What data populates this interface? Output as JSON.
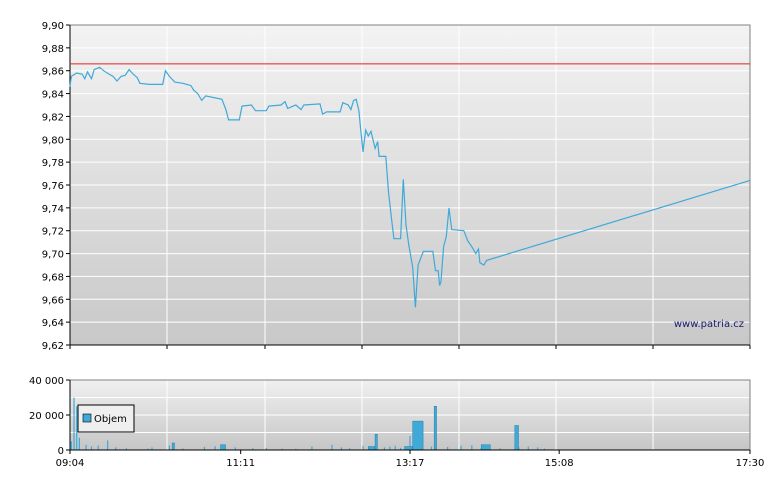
{
  "chart_data": [
    {
      "type": "line",
      "name": "price",
      "y_ticks": [
        "9,90",
        "9,88",
        "9,86",
        "9,84",
        "9,82",
        "9,80",
        "9,78",
        "9,76",
        "9,74",
        "9,72",
        "9,70",
        "9,68",
        "9,66",
        "9,64",
        "9,62"
      ],
      "ylim": [
        9.62,
        9.9
      ],
      "xlim_minutes": [
        544,
        1050
      ],
      "reference_line": {
        "value": 9.866,
        "color": "#e02020"
      },
      "series_color": "#3fa9d8",
      "watermark": "www.patria.cz",
      "points": [
        [
          544,
          9.846
        ],
        [
          545,
          9.855
        ],
        [
          549,
          9.858
        ],
        [
          553,
          9.857
        ],
        [
          555,
          9.853
        ],
        [
          557,
          9.859
        ],
        [
          560,
          9.853
        ],
        [
          562,
          9.861
        ],
        [
          566,
          9.863
        ],
        [
          569,
          9.86
        ],
        [
          573,
          9.857
        ],
        [
          576,
          9.855
        ],
        [
          579,
          9.851
        ],
        [
          582,
          9.855
        ],
        [
          585,
          9.856
        ],
        [
          588,
          9.861
        ],
        [
          591,
          9.857
        ],
        [
          594,
          9.854
        ],
        [
          596,
          9.849
        ],
        [
          603,
          9.848
        ],
        [
          613,
          9.848
        ],
        [
          615,
          9.86
        ],
        [
          618,
          9.855
        ],
        [
          622,
          9.85
        ],
        [
          628,
          9.849
        ],
        [
          634,
          9.847
        ],
        [
          636,
          9.843
        ],
        [
          639,
          9.84
        ],
        [
          642,
          9.834
        ],
        [
          645,
          9.838
        ],
        [
          657,
          9.835
        ],
        [
          660,
          9.826
        ],
        [
          662,
          9.817
        ],
        [
          670,
          9.817
        ],
        [
          672,
          9.829
        ],
        [
          679,
          9.83
        ],
        [
          682,
          9.825
        ],
        [
          690,
          9.825
        ],
        [
          692,
          9.829
        ],
        [
          701,
          9.83
        ],
        [
          704,
          9.833
        ],
        [
          706,
          9.827
        ],
        [
          712,
          9.83
        ],
        [
          716,
          9.826
        ],
        [
          718,
          9.83
        ],
        [
          730,
          9.831
        ],
        [
          732,
          9.822
        ],
        [
          735,
          9.824
        ],
        [
          745,
          9.824
        ],
        [
          747,
          9.832
        ],
        [
          751,
          9.83
        ],
        [
          753,
          9.826
        ],
        [
          755,
          9.834
        ],
        [
          757,
          9.835
        ],
        [
          759,
          9.825
        ],
        [
          760,
          9.812
        ],
        [
          762,
          9.789
        ],
        [
          764,
          9.808
        ],
        [
          766,
          9.803
        ],
        [
          768,
          9.807
        ],
        [
          771,
          9.792
        ],
        [
          773,
          9.798
        ],
        [
          774,
          9.785
        ],
        [
          779,
          9.785
        ],
        [
          781,
          9.754
        ],
        [
          783,
          9.733
        ],
        [
          785,
          9.713
        ],
        [
          790,
          9.713
        ],
        [
          792,
          9.765
        ],
        [
          794,
          9.725
        ],
        [
          796,
          9.708
        ],
        [
          799,
          9.688
        ],
        [
          801,
          9.653
        ],
        [
          803,
          9.69
        ],
        [
          807,
          9.702
        ],
        [
          814,
          9.702
        ],
        [
          816,
          9.685
        ],
        [
          818,
          9.685
        ],
        [
          819,
          9.672
        ],
        [
          820,
          9.675
        ],
        [
          822,
          9.706
        ],
        [
          824,
          9.715
        ],
        [
          826,
          9.74
        ],
        [
          828,
          9.721
        ],
        [
          837,
          9.72
        ],
        [
          840,
          9.711
        ],
        [
          843,
          9.706
        ],
        [
          846,
          9.7
        ],
        [
          848,
          9.704
        ],
        [
          849,
          9.692
        ],
        [
          852,
          9.69
        ],
        [
          854,
          9.694
        ],
        [
          1050,
          9.764
        ]
      ]
    },
    {
      "type": "bar",
      "name": "volume",
      "y_ticks": [
        "40 000",
        "20 000",
        "0"
      ],
      "ylim": [
        0,
        40000
      ],
      "xlim_minutes": [
        544,
        1050
      ],
      "x_ticks": [
        "09:04",
        "11:11",
        "13:17",
        "15:08",
        "17:30"
      ],
      "x_tick_minutes": [
        544,
        671,
        797,
        908,
        1050
      ],
      "legend": "Objem",
      "bar_color": "#3fa9d8",
      "bars": [
        [
          545,
          5000
        ],
        [
          547,
          30000
        ],
        [
          549,
          25000
        ],
        [
          551,
          7000
        ],
        [
          556,
          3000
        ],
        [
          560,
          2000
        ],
        [
          565,
          2500
        ],
        [
          572,
          5500
        ],
        [
          578,
          1500
        ],
        [
          586,
          1000
        ],
        [
          602,
          800
        ],
        [
          605,
          1500
        ],
        [
          618,
          2500
        ],
        [
          628,
          900
        ],
        [
          644,
          1800
        ],
        [
          652,
          2200
        ],
        [
          667,
          1500
        ],
        [
          680,
          1000
        ],
        [
          690,
          1200
        ],
        [
          702,
          800
        ],
        [
          712,
          700
        ],
        [
          724,
          2000
        ],
        [
          739,
          3000
        ],
        [
          746,
          1500
        ],
        [
          752,
          1000
        ],
        [
          762,
          2400
        ],
        [
          778,
          1500
        ],
        [
          782,
          2000
        ],
        [
          786,
          2400
        ],
        [
          790,
          1200
        ],
        [
          797,
          8000
        ],
        [
          800,
          4000
        ],
        [
          806,
          3000
        ],
        [
          813,
          2000
        ],
        [
          816,
          1200
        ],
        [
          825,
          1800
        ],
        [
          835,
          2400
        ],
        [
          843,
          2600
        ],
        [
          850,
          1200
        ],
        [
          864,
          1000
        ],
        [
          878,
          1500
        ],
        [
          885,
          2000
        ],
        [
          892,
          1500
        ],
        [
          897,
          800
        ]
      ],
      "blocks": [
        [
          620,
          621,
          4000
        ],
        [
          656,
          659,
          3000
        ],
        [
          766,
          770,
          2000
        ],
        [
          771,
          772,
          9000
        ],
        [
          793,
          798,
          2000
        ],
        [
          799,
          806,
          16500
        ],
        [
          815,
          816,
          25000
        ],
        [
          850,
          856,
          3000
        ],
        [
          875,
          877,
          14000
        ]
      ]
    }
  ]
}
